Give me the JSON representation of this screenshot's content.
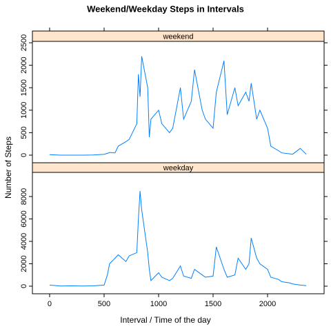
{
  "chart_data": {
    "type": "line",
    "title": "Weekend/Weekday Steps in Intervals",
    "xlabel": "Interval / Time of the day",
    "ylabel": "Number of Steps",
    "color": "#0080ff",
    "xlim": [
      -158,
      2519
    ],
    "xticks": [
      0,
      500,
      1000,
      1500,
      2000
    ],
    "x": [
      0,
      100,
      200,
      300,
      400,
      500,
      530,
      550,
      600,
      630,
      700,
      730,
      800,
      815,
      830,
      845,
      900,
      915,
      930,
      1000,
      1030,
      1100,
      1130,
      1200,
      1230,
      1300,
      1330,
      1400,
      1430,
      1500,
      1530,
      1600,
      1630,
      1700,
      1730,
      1800,
      1830,
      1850,
      1900,
      1930,
      2000,
      2030,
      2100,
      2130,
      2200,
      2230,
      2300,
      2355
    ],
    "series": [
      {
        "name": "weekend",
        "ylim": [
          -169,
          2531
        ],
        "yticks": [
          0,
          500,
          1000,
          1500,
          2000,
          2500
        ],
        "values": [
          10,
          0,
          0,
          0,
          5,
          20,
          40,
          60,
          50,
          200,
          300,
          350,
          700,
          1800,
          1300,
          2200,
          1500,
          400,
          800,
          1000,
          700,
          500,
          600,
          1500,
          800,
          1200,
          1900,
          1000,
          800,
          600,
          1400,
          2100,
          900,
          1500,
          1100,
          1400,
          1200,
          1600,
          800,
          1000,
          600,
          200,
          100,
          50,
          30,
          20,
          150,
          20
        ]
      },
      {
        "name": "weekday",
        "ylim": [
          -677,
          10154
        ],
        "yticks": [
          0,
          2000,
          4000,
          6000,
          8000
        ],
        "values": [
          100,
          20,
          30,
          10,
          30,
          100,
          1000,
          2000,
          2500,
          2800,
          2200,
          2700,
          3000,
          6000,
          8500,
          6800,
          3000,
          1500,
          500,
          1200,
          800,
          500,
          700,
          1800,
          900,
          700,
          1500,
          1000,
          800,
          900,
          3500,
          1500,
          800,
          1000,
          2500,
          1500,
          2000,
          4300,
          2500,
          2000,
          1500,
          800,
          600,
          400,
          300,
          200,
          100,
          50
        ]
      }
    ]
  }
}
